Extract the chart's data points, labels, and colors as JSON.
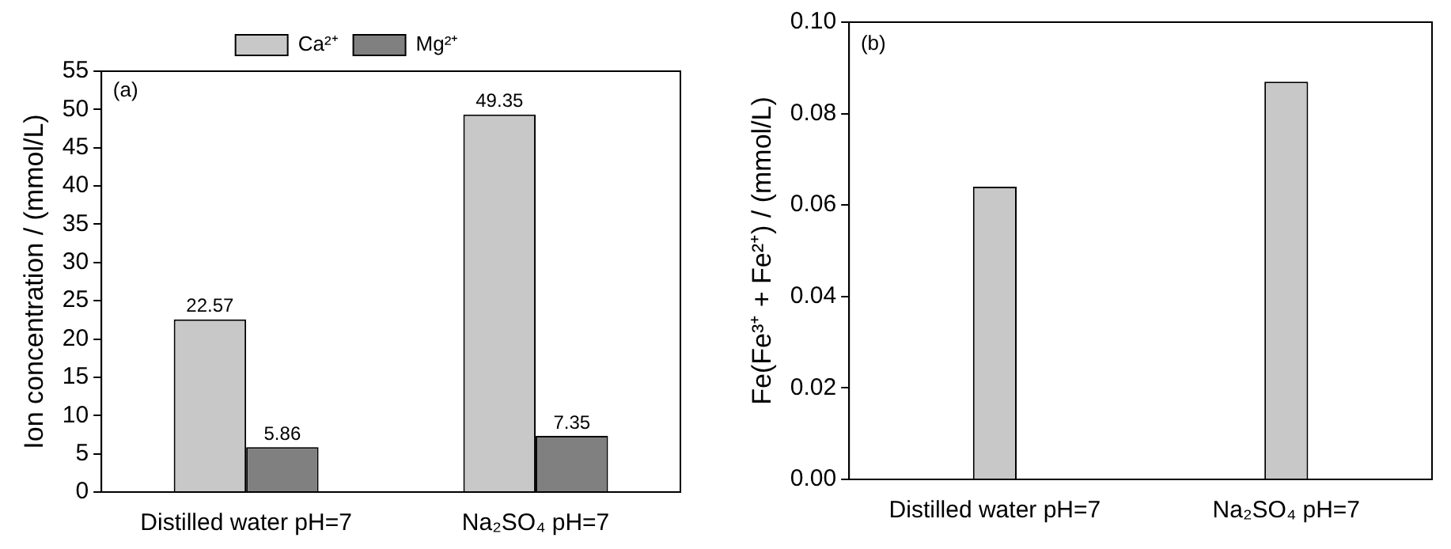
{
  "chart_data": [
    {
      "type": "bar",
      "ylabel": "Ion concentration / (mmol/L)",
      "annotations": [
        "(a)"
      ],
      "categories": [
        "Distilled water pH=7",
        "Na₂SO₄ pH=7"
      ],
      "series": [
        {
          "name": "Ca²⁺",
          "color": "#c8c8c8",
          "values": [
            22.57,
            49.35
          ]
        },
        {
          "name": "Mg²⁺",
          "color": "#808080",
          "values": [
            5.86,
            7.35
          ]
        }
      ],
      "ylim": [
        0,
        55
      ],
      "yticks": [
        0,
        5,
        10,
        15,
        20,
        25,
        30,
        35,
        40,
        45,
        50,
        55
      ],
      "grid": false,
      "legend": "top",
      "data_labels": true
    },
    {
      "type": "bar",
      "ylabel": "Fe(Fe³⁺ + Fe²⁺) / (mmol/L)",
      "annotations": [
        "(b)"
      ],
      "categories": [
        "Distilled water pH=7",
        "Na₂SO₄ pH=7"
      ],
      "series": [
        {
          "color": "#c8c8c8",
          "values": [
            0.064,
            0.087
          ]
        }
      ],
      "ylim": [
        0,
        0.1
      ],
      "yticks": [
        {
          "value": 0,
          "label": "0.00"
        },
        {
          "value": 0.02,
          "label": "0.02"
        },
        {
          "value": 0.04,
          "label": "0.04"
        },
        {
          "value": 0.06,
          "label": "0.06"
        },
        {
          "value": 0.08,
          "label": "0.08"
        },
        {
          "value": 0.1,
          "label": "0.10"
        }
      ],
      "grid": false
    }
  ]
}
